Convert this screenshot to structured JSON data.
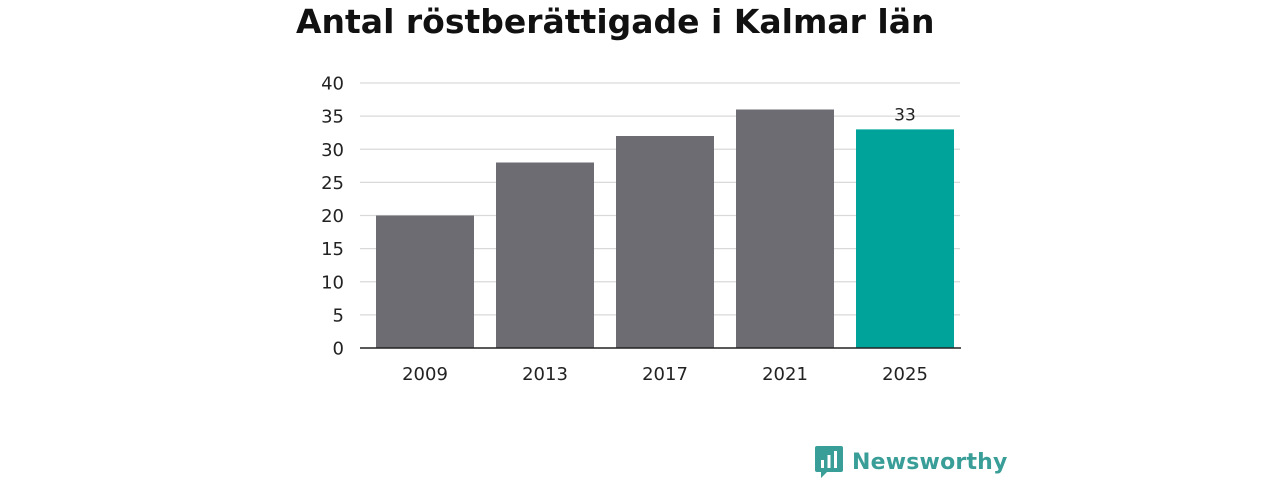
{
  "chart_data": {
    "type": "bar",
    "title": "Antal röstberättigade i Kalmar län",
    "xlabel": "",
    "ylabel": "",
    "categories": [
      "2009",
      "2013",
      "2017",
      "2021",
      "2025"
    ],
    "values": [
      20,
      28,
      32,
      36,
      33
    ],
    "ylim": [
      0,
      40
    ],
    "yticks": [
      0,
      5,
      10,
      15,
      20,
      25,
      30,
      35,
      40
    ],
    "grid": true,
    "bar_colors": [
      "#6d6c72",
      "#6d6c72",
      "#6d6c72",
      "#6d6c72",
      "#00a39a"
    ],
    "data_labels": [
      {
        "category": "2025",
        "text": "33"
      }
    ]
  },
  "brand": {
    "name": "Newsworthy",
    "icon": "newsworthy-logo-icon",
    "color": "#3a9e98"
  },
  "colors": {
    "bar": "#6d6c72",
    "highlight": "#00a39a",
    "grid": "#d9d9d9",
    "axis": "#222222"
  }
}
